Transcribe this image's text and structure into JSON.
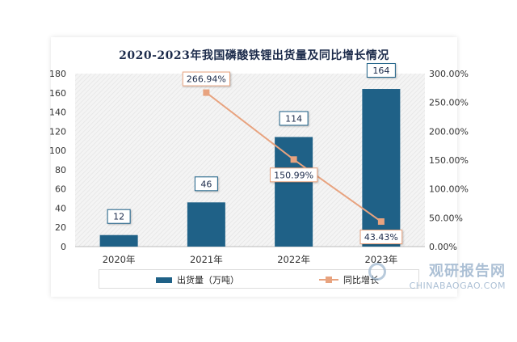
{
  "chart_data": {
    "type": "bar",
    "title": "2020-2023年我国磷酸铁锂出货量及同比增长情况",
    "categories": [
      "2020年",
      "2021年",
      "2022年",
      "2023年"
    ],
    "series": [
      {
        "name": "出货量（万吨）",
        "type": "bar",
        "axis": "left",
        "values": [
          12,
          46,
          114,
          164
        ],
        "color": "#1f6187"
      },
      {
        "name": "同比增长",
        "type": "line",
        "axis": "right",
        "values": [
          null,
          266.94,
          150.99,
          43.43
        ],
        "color": "#e8a37f"
      }
    ],
    "bar_labels": [
      "12",
      "46",
      "114",
      "164"
    ],
    "line_labels": [
      "",
      "266.94%",
      "150.99%",
      "43.43%"
    ],
    "ylim_left": [
      0,
      180
    ],
    "yticks_left": [
      "0",
      "20",
      "40",
      "60",
      "80",
      "100",
      "120",
      "140",
      "160",
      "180"
    ],
    "ylim_right": [
      0,
      300
    ],
    "yticks_right": [
      "0.00%",
      "50.00%",
      "100.00%",
      "150.00%",
      "200.00%",
      "250.00%",
      "300.00%"
    ],
    "grid": false,
    "plot_background": "hatched-gray",
    "legend_position": "bottom"
  },
  "legend": {
    "bar_label": "出货量（万吨）",
    "line_label": "同比增长"
  },
  "watermark": {
    "cn": "观研报告网",
    "en": "CHINABAOGAO.COM"
  }
}
